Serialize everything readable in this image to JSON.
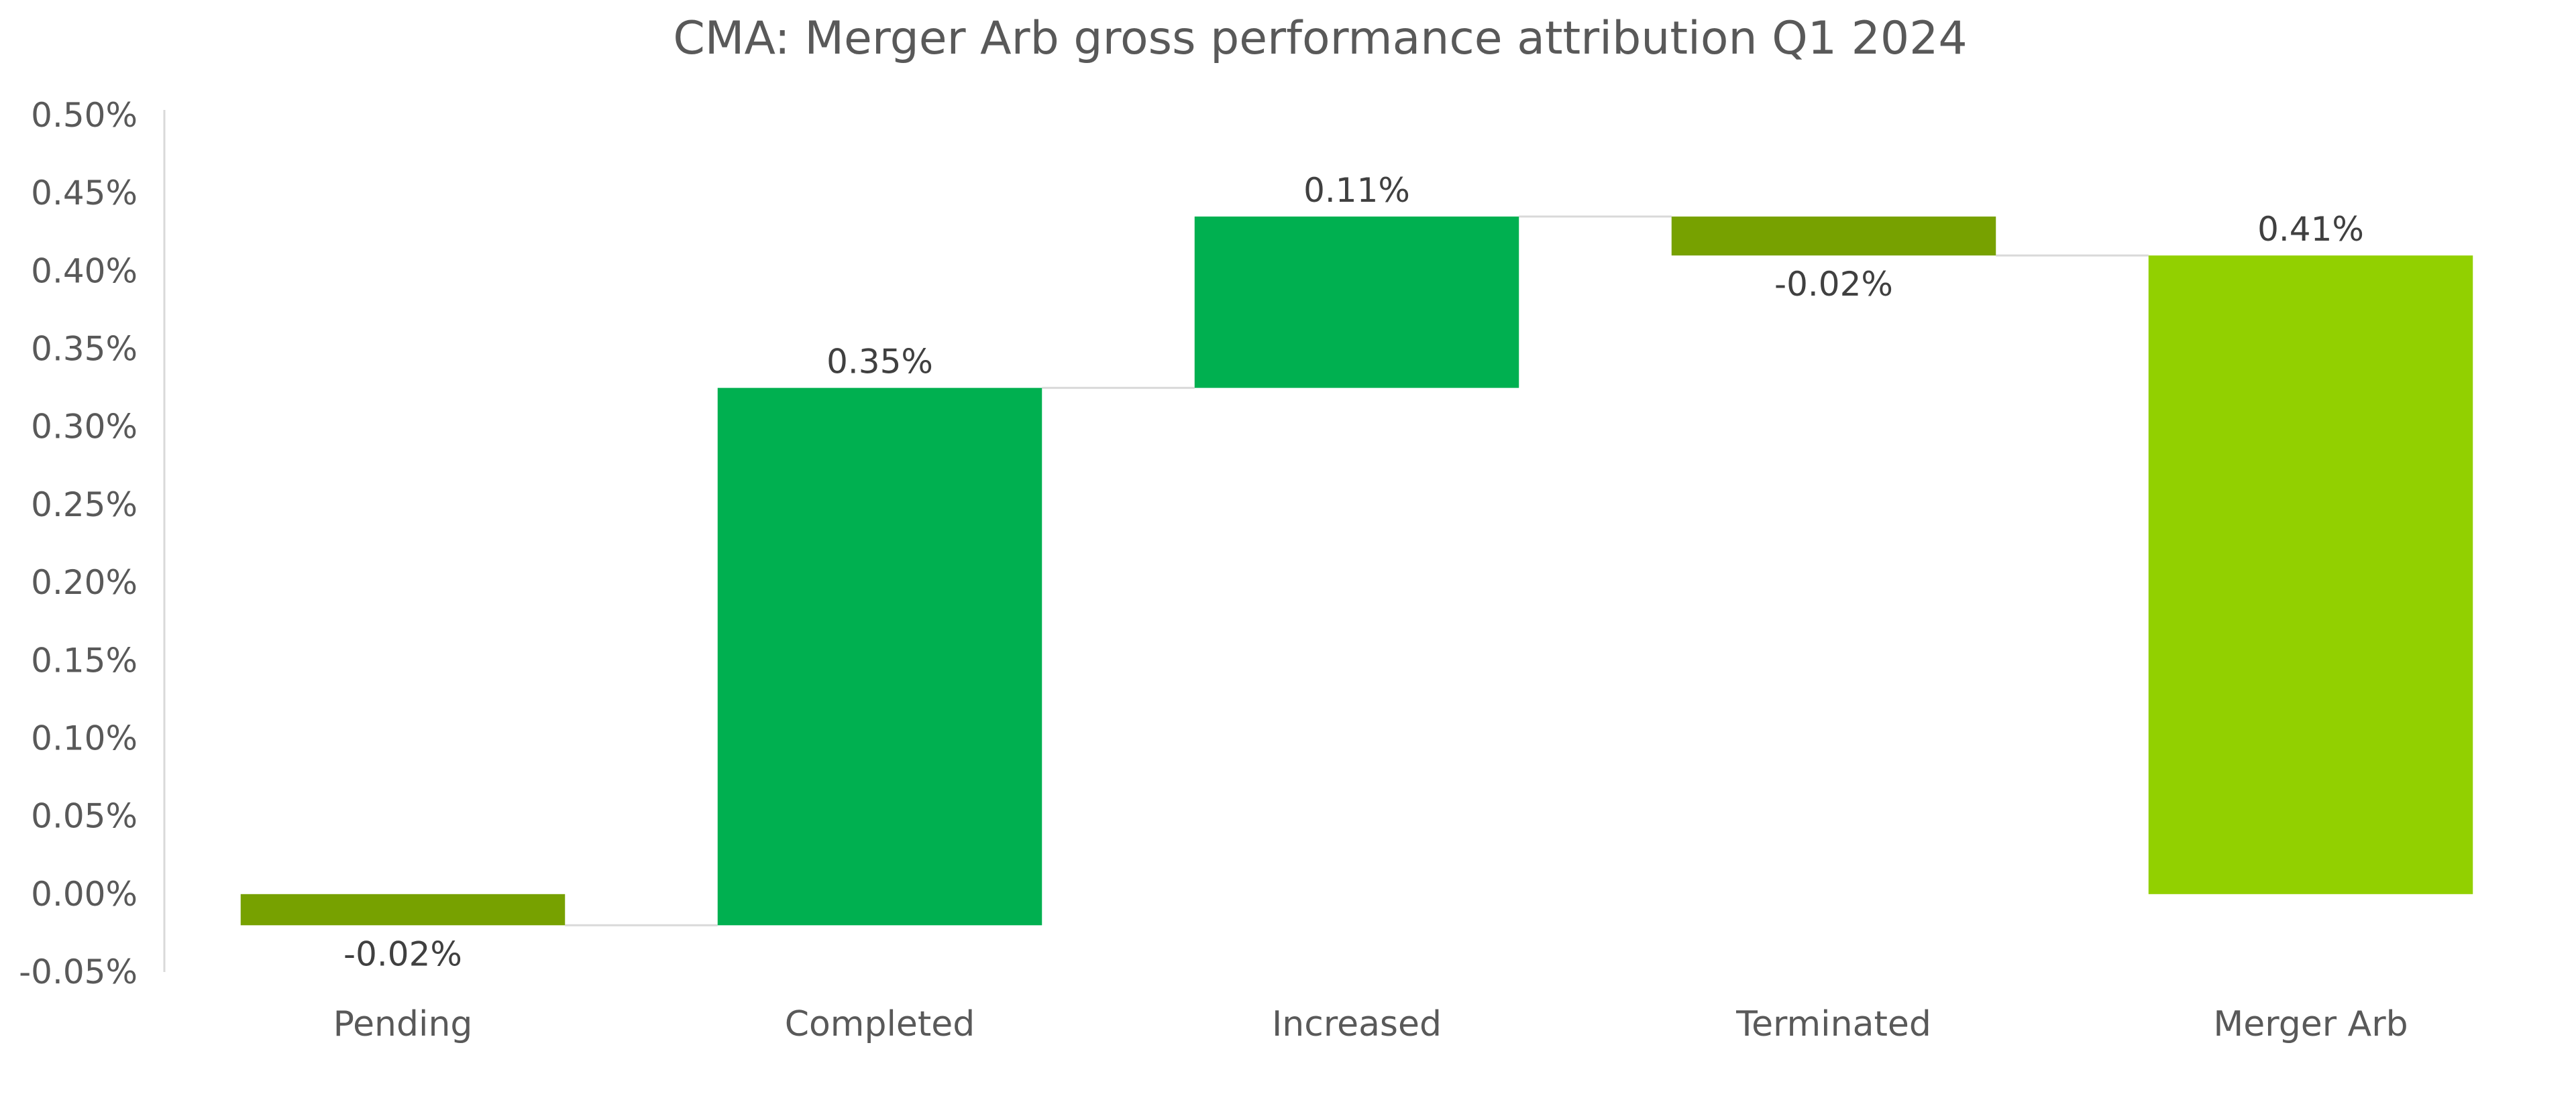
{
  "chart_data": {
    "type": "bar",
    "subtype": "waterfall",
    "title": "CMA: Merger Arb gross performance attribution Q1 2024",
    "xlabel": "",
    "ylabel": "",
    "categories": [
      "Pending",
      "Completed",
      "Increased",
      "Terminated",
      "Merger Arb"
    ],
    "values": [
      -0.02,
      0.35,
      0.11,
      -0.02,
      0.41
    ],
    "bar_bottoms": [
      0.0,
      -0.02,
      0.325,
      0.435,
      0.0
    ],
    "bar_tops": [
      -0.02,
      0.325,
      0.435,
      0.41,
      0.41
    ],
    "data_labels": [
      "-0.02%",
      "0.35%",
      "0.11%",
      "-0.02%",
      "0.41%"
    ],
    "bar_kinds": [
      "decrease",
      "increase",
      "increase",
      "decrease",
      "total"
    ],
    "ylim": [
      -0.05,
      0.5
    ],
    "yticks": [
      -0.05,
      0.0,
      0.05,
      0.1,
      0.15,
      0.2,
      0.25,
      0.3,
      0.35,
      0.4,
      0.45,
      0.5
    ],
    "ytick_labels": [
      "-0.05%",
      "0.00%",
      "0.05%",
      "0.10%",
      "0.15%",
      "0.20%",
      "0.25%",
      "0.30%",
      "0.35%",
      "0.40%",
      "0.45%",
      "0.50%"
    ],
    "grid": false,
    "legend": "none",
    "colors": {
      "increase": "#00B050",
      "decrease": "#77A100",
      "total": "#92D000",
      "connector": "#D9D9D9",
      "axis": "#D9D9D9"
    }
  }
}
